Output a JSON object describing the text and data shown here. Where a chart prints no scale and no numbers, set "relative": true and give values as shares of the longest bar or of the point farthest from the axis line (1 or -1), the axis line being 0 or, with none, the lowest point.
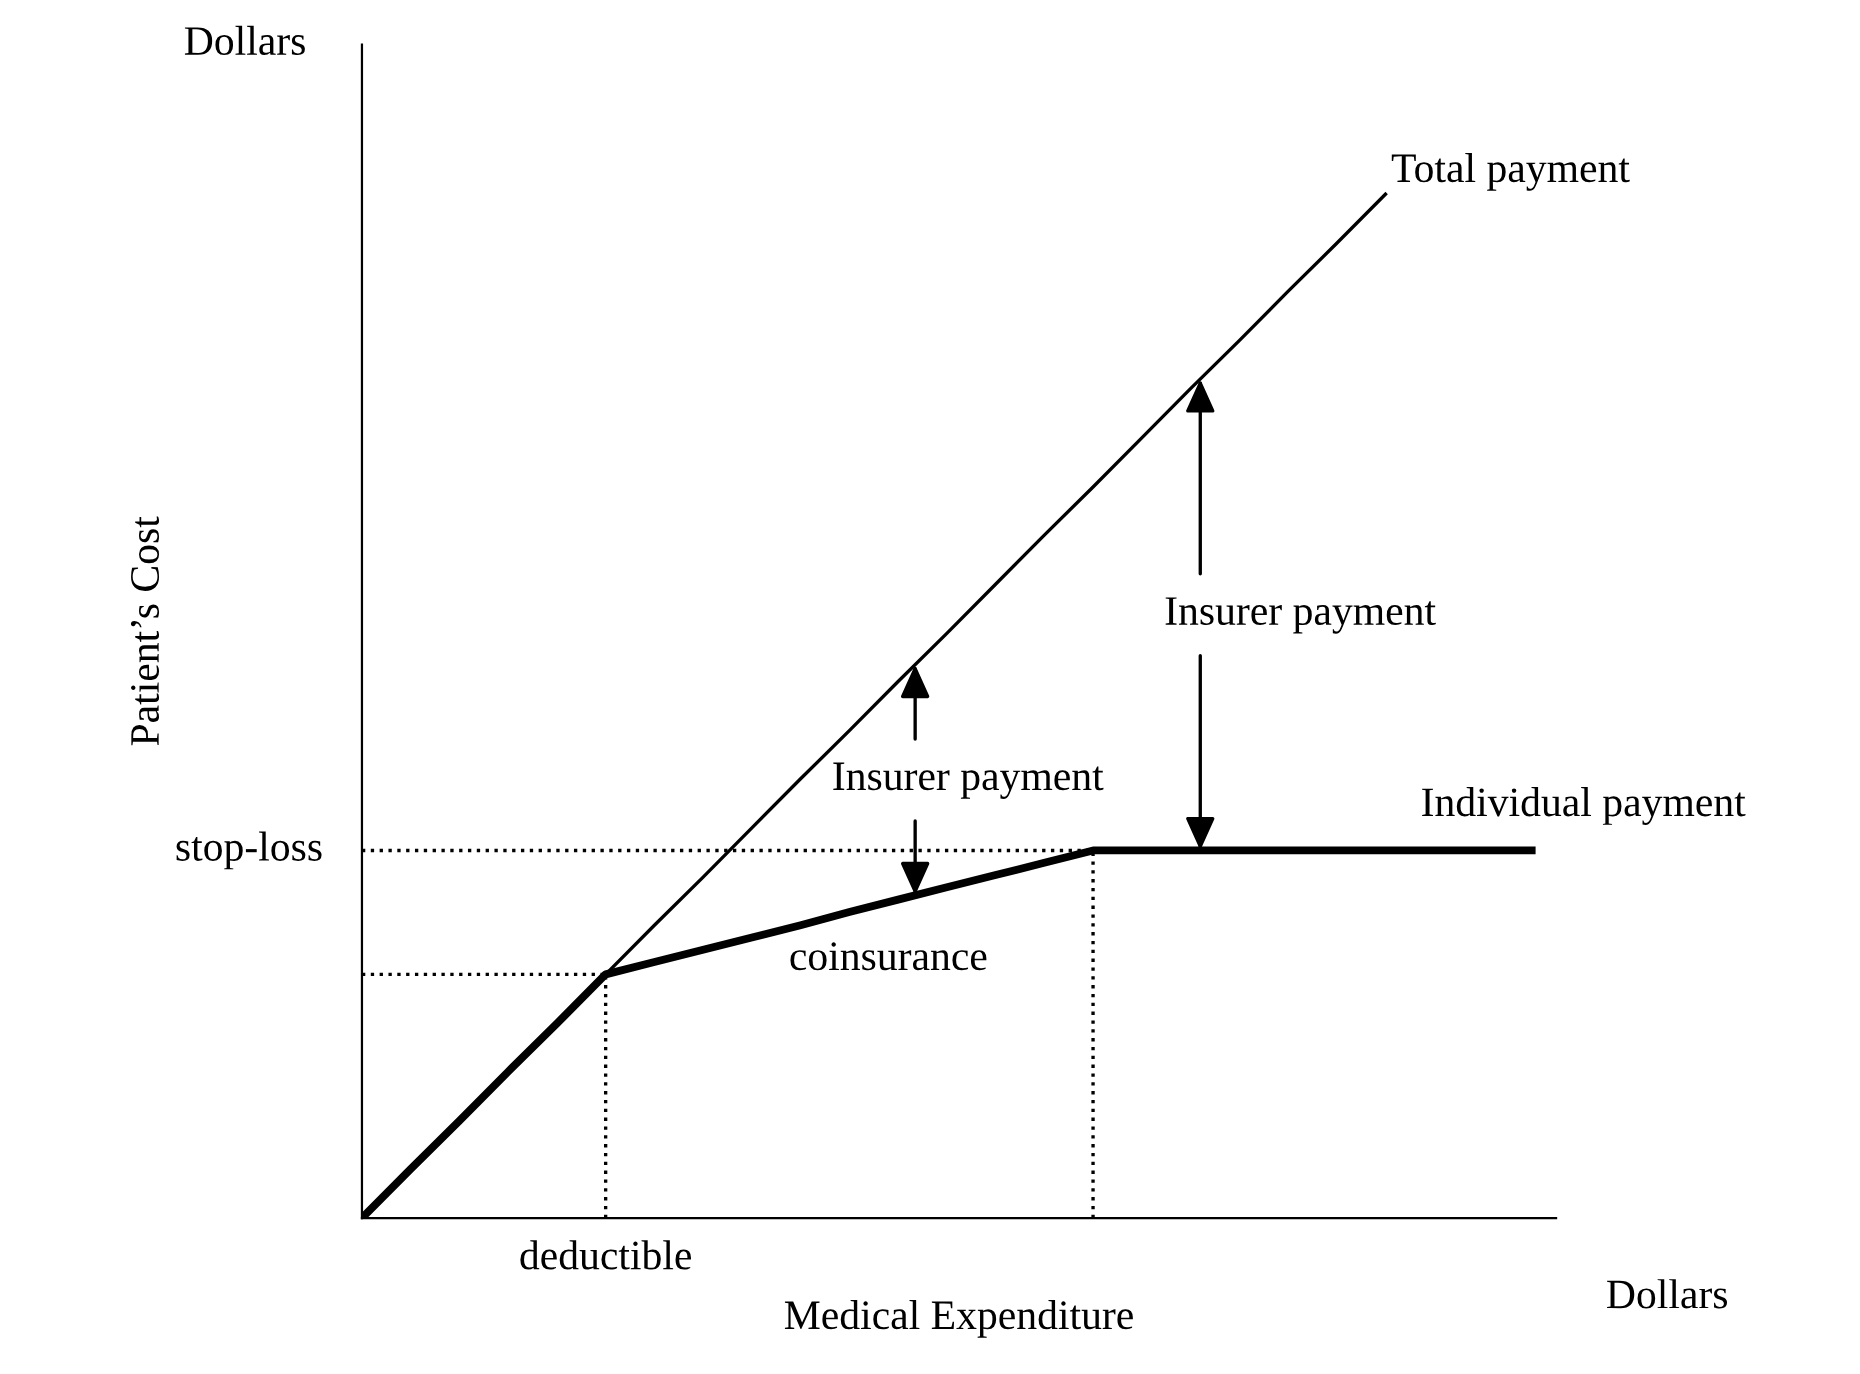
{
  "chart_data": {
    "type": "line",
    "relative": true,
    "xlabel": "Medical Expenditure",
    "ylabel": "Patient’s Cost",
    "categories": [
      null,
      null,
      null,
      null,
      null,
      null,
      null,
      null,
      null,
      null,
      null,
      null,
      null,
      null,
      null,
      null,
      null,
      null,
      null,
      null,
      null,
      null,
      null,
      null,
      null
    ],
    "series": [
      {
        "name": "Total payment",
        "color": "#000000",
        "values": [
          0,
          0.048,
          0.095,
          0.143,
          0.19,
          0.238,
          0.286,
          0.333,
          0.381,
          0.429,
          0.476,
          0.524,
          0.571,
          0.619,
          0.667,
          0.714,
          0.762,
          0.81,
          0.857,
          0.905,
          0.952,
          1.0,
          null,
          null,
          null
        ]
      },
      {
        "name": "Individual payment",
        "color": "#000000",
        "values": [
          0,
          0.048,
          0.095,
          0.143,
          0.19,
          0.238,
          0.25,
          0.262,
          0.274,
          0.286,
          0.299,
          0.311,
          0.323,
          0.335,
          0.347,
          0.359,
          0.359,
          0.359,
          0.359,
          0.359,
          0.359,
          0.359,
          0.359,
          0.359,
          0.359
        ]
      },
      {
        "color": "#000000",
        "line_style": "dotted",
        "values": [
          0.359,
          0.359,
          0.359,
          0.359,
          0.359,
          0.359,
          0.359,
          0.359,
          0.359,
          0.359,
          0.359,
          0.359,
          0.359,
          0.359,
          0.359,
          0.359,
          null,
          null,
          null,
          null,
          null,
          null,
          null,
          null,
          null
        ]
      },
      {
        "color": "#000000",
        "line_style": "dotted",
        "values": [
          0.238,
          0.238,
          0.238,
          0.238,
          0.238,
          0.238,
          null,
          null,
          null,
          null,
          null,
          null,
          null,
          null,
          null,
          null,
          null,
          null,
          null,
          null,
          null,
          null,
          null,
          null,
          null
        ]
      }
    ],
    "annotations": [
      "Dollars",
      "Dollars",
      "Insurer payment",
      "Insurer payment",
      "coinsurance",
      "stop-loss",
      "deductible"
    ],
    "legend": false
  }
}
